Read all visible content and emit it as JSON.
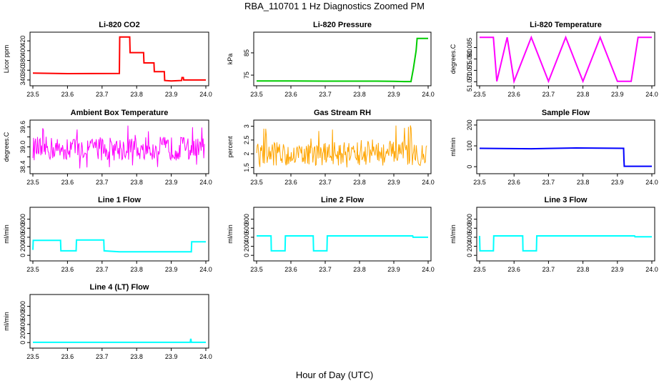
{
  "figure": {
    "title": "RBA_110701  1 Hz Diagnostics Zoomed PM",
    "x_axis_title": "Hour of Day (UTC)"
  },
  "colors": {
    "red": "#ff0000",
    "green": "#00cc00",
    "magenta": "#ff00ff",
    "orange": "#ffa500",
    "blue": "#0000ff",
    "cyan": "#00ffff",
    "axis": "#000000"
  },
  "chart_data": [
    {
      "type": "line",
      "title": "Li-820 CO2",
      "ylabel": "Licor ppm",
      "color": "#ff0000",
      "x_ticks": [
        "23.5",
        "23.6",
        "23.7",
        "23.8",
        "23.9",
        "24.0"
      ],
      "xlim": [
        23.5,
        24.0
      ],
      "y_ticks": [
        340,
        360,
        380,
        400,
        420
      ],
      "ylim": [
        334,
        432
      ],
      "x": [
        23.5,
        23.6,
        23.75,
        23.751,
        23.78,
        23.781,
        23.82,
        23.821,
        23.85,
        23.851,
        23.88,
        23.881,
        23.9,
        23.93,
        23.931,
        23.935,
        23.936,
        24.0
      ],
      "y": [
        354,
        353,
        353.5,
        428,
        428,
        396,
        396,
        375,
        375,
        357,
        357,
        339,
        338,
        339,
        345,
        345,
        340,
        340
      ]
    },
    {
      "type": "line",
      "title": "Li-820 Pressure",
      "ylabel": "kPa",
      "color": "#00cc00",
      "x_ticks": [
        "23.5",
        "23.6",
        "23.7",
        "23.8",
        "23.9",
        "24.0"
      ],
      "xlim": [
        23.5,
        24.0
      ],
      "y_ticks": [
        75,
        85
      ],
      "ylim": [
        71.5,
        93
      ],
      "x": [
        23.5,
        23.6,
        23.7,
        23.8,
        23.85,
        23.9,
        23.93,
        23.95,
        23.957,
        23.965,
        23.968,
        24.0
      ],
      "y": [
        72.4,
        72.4,
        72.3,
        72.3,
        72.3,
        72.2,
        72.1,
        72.1,
        78,
        86,
        91.5,
        91.5
      ]
    },
    {
      "type": "line",
      "title": "Li-820 Temperature",
      "ylabel": "degrees.C",
      "color": "#ff00ff",
      "x_ticks": [
        "23.5",
        "23.6",
        "23.7",
        "23.8",
        "23.9",
        "24.0"
      ],
      "xlim": [
        23.5,
        24.0
      ],
      "y_ticks": [
        51.07,
        51.075,
        51.08,
        51.085
      ],
      "y_tick_labels": [
        "51.070",
        "51.075",
        "51.080",
        "51.085"
      ],
      "ylim": [
        51.0695,
        51.0905
      ],
      "x": [
        23.5,
        23.54,
        23.55,
        23.58,
        23.6,
        23.65,
        23.7,
        23.75,
        23.8,
        23.85,
        23.9,
        23.94,
        23.96,
        24.0
      ],
      "y": [
        51.0895,
        51.0895,
        51.0702,
        51.0895,
        51.0702,
        51.0895,
        51.0702,
        51.0895,
        51.0702,
        51.0895,
        51.0702,
        51.0702,
        51.0895,
        51.0895
      ]
    },
    {
      "type": "line",
      "title": "Ambient Box Temperature",
      "ylabel": "degrees.C",
      "color": "#ff00ff",
      "x_ticks": [
        "23.5",
        "23.6",
        "23.7",
        "23.8",
        "23.9",
        "24.0"
      ],
      "xlim": [
        23.5,
        24.0
      ],
      "y_ticks": [
        38.4,
        38.7,
        39.0,
        39.3,
        39.6
      ],
      "y_tick_labels": [
        "38.4",
        "",
        "39.0",
        "",
        "39.6"
      ],
      "ylim": [
        38.28,
        39.72
      ],
      "noise": {
        "center": 38.95,
        "range": [
          38.35,
          39.65
        ]
      },
      "x_range": [
        23.5,
        23.996
      ]
    },
    {
      "type": "line",
      "title": "Gas Stream RH",
      "ylabel": "percent",
      "color": "#ffa500",
      "x_ticks": [
        "23.5",
        "23.6",
        "23.7",
        "23.8",
        "23.9",
        "24.0"
      ],
      "xlim": [
        23.5,
        24.0
      ],
      "y_ticks": [
        1.5,
        2.0,
        2.5,
        3.0
      ],
      "ylim": [
        1.38,
        3.12
      ],
      "noise": {
        "center": 2.0,
        "range": [
          1.5,
          3.05
        ]
      },
      "x_range": [
        23.5,
        23.996
      ]
    },
    {
      "type": "line",
      "title": "Sample Flow",
      "ylabel": "ml/min",
      "color": "#0000ff",
      "x_ticks": [
        "23.5",
        "23.6",
        "23.7",
        "23.8",
        "23.9",
        "24.0"
      ],
      "xlim": [
        23.5,
        24.0
      ],
      "y_ticks": [
        0,
        100,
        200
      ],
      "ylim": [
        -20,
        210
      ],
      "x": [
        23.5,
        23.65,
        23.78,
        23.918,
        23.919,
        23.92,
        24.0
      ],
      "y": [
        88,
        86,
        90,
        88,
        30,
        2,
        2
      ]
    },
    {
      "type": "line",
      "title": "Line 1 Flow",
      "ylabel": "ml/min",
      "color": "#00ffff",
      "x_ticks": [
        "23.5",
        "23.6",
        "23.7",
        "23.8",
        "23.9",
        "24.0"
      ],
      "xlim": [
        23.5,
        24.0
      ],
      "y_ticks": [
        0,
        200,
        400,
        600,
        800
      ],
      "ylim": [
        -60,
        1000
      ],
      "x": [
        23.5,
        23.501,
        23.58,
        23.581,
        23.625,
        23.626,
        23.705,
        23.706,
        23.75,
        23.958,
        23.959,
        24.0
      ],
      "y": [
        120,
        330,
        330,
        100,
        100,
        340,
        340,
        100,
        80,
        80,
        300,
        300
      ]
    },
    {
      "type": "line",
      "title": "Line 2 Flow",
      "ylabel": "ml/min",
      "color": "#00ffff",
      "x_ticks": [
        "23.5",
        "23.6",
        "23.7",
        "23.8",
        "23.9",
        "24.0"
      ],
      "xlim": [
        23.5,
        24.0
      ],
      "y_ticks": [
        0,
        200,
        400,
        600,
        800
      ],
      "ylim": [
        -60,
        1000
      ],
      "x": [
        23.5,
        23.542,
        23.543,
        23.583,
        23.584,
        23.665,
        23.666,
        23.705,
        23.706,
        23.955,
        23.956,
        24.0
      ],
      "y": [
        430,
        430,
        100,
        100,
        430,
        430,
        100,
        100,
        430,
        430,
        400,
        400
      ]
    },
    {
      "type": "line",
      "title": "Line 3 Flow",
      "ylabel": "ml/min",
      "color": "#00ffff",
      "x_ticks": [
        "23.5",
        "23.6",
        "23.7",
        "23.8",
        "23.9",
        "24.0"
      ],
      "xlim": [
        23.5,
        24.0
      ],
      "y_ticks": [
        0,
        200,
        400,
        600,
        800
      ],
      "ylim": [
        -60,
        1000
      ],
      "x": [
        23.5,
        23.501,
        23.54,
        23.541,
        23.625,
        23.626,
        23.665,
        23.666,
        23.95,
        23.951,
        24.0
      ],
      "y": [
        430,
        100,
        100,
        430,
        430,
        100,
        100,
        430,
        430,
        410,
        410
      ]
    },
    {
      "type": "line",
      "title": "Line 4 (LT) Flow",
      "ylabel": "ml/min",
      "color": "#00ffff",
      "x_ticks": [
        "23.5",
        "23.6",
        "23.7",
        "23.8",
        "23.9",
        "24.0"
      ],
      "xlim": [
        23.5,
        24.0
      ],
      "y_ticks": [
        0,
        200,
        400,
        600,
        800
      ],
      "ylim": [
        -60,
        1000
      ],
      "x": [
        23.5,
        23.955,
        23.956,
        23.957,
        23.958,
        24.0
      ],
      "y": [
        5,
        5,
        70,
        70,
        5,
        5
      ]
    }
  ]
}
